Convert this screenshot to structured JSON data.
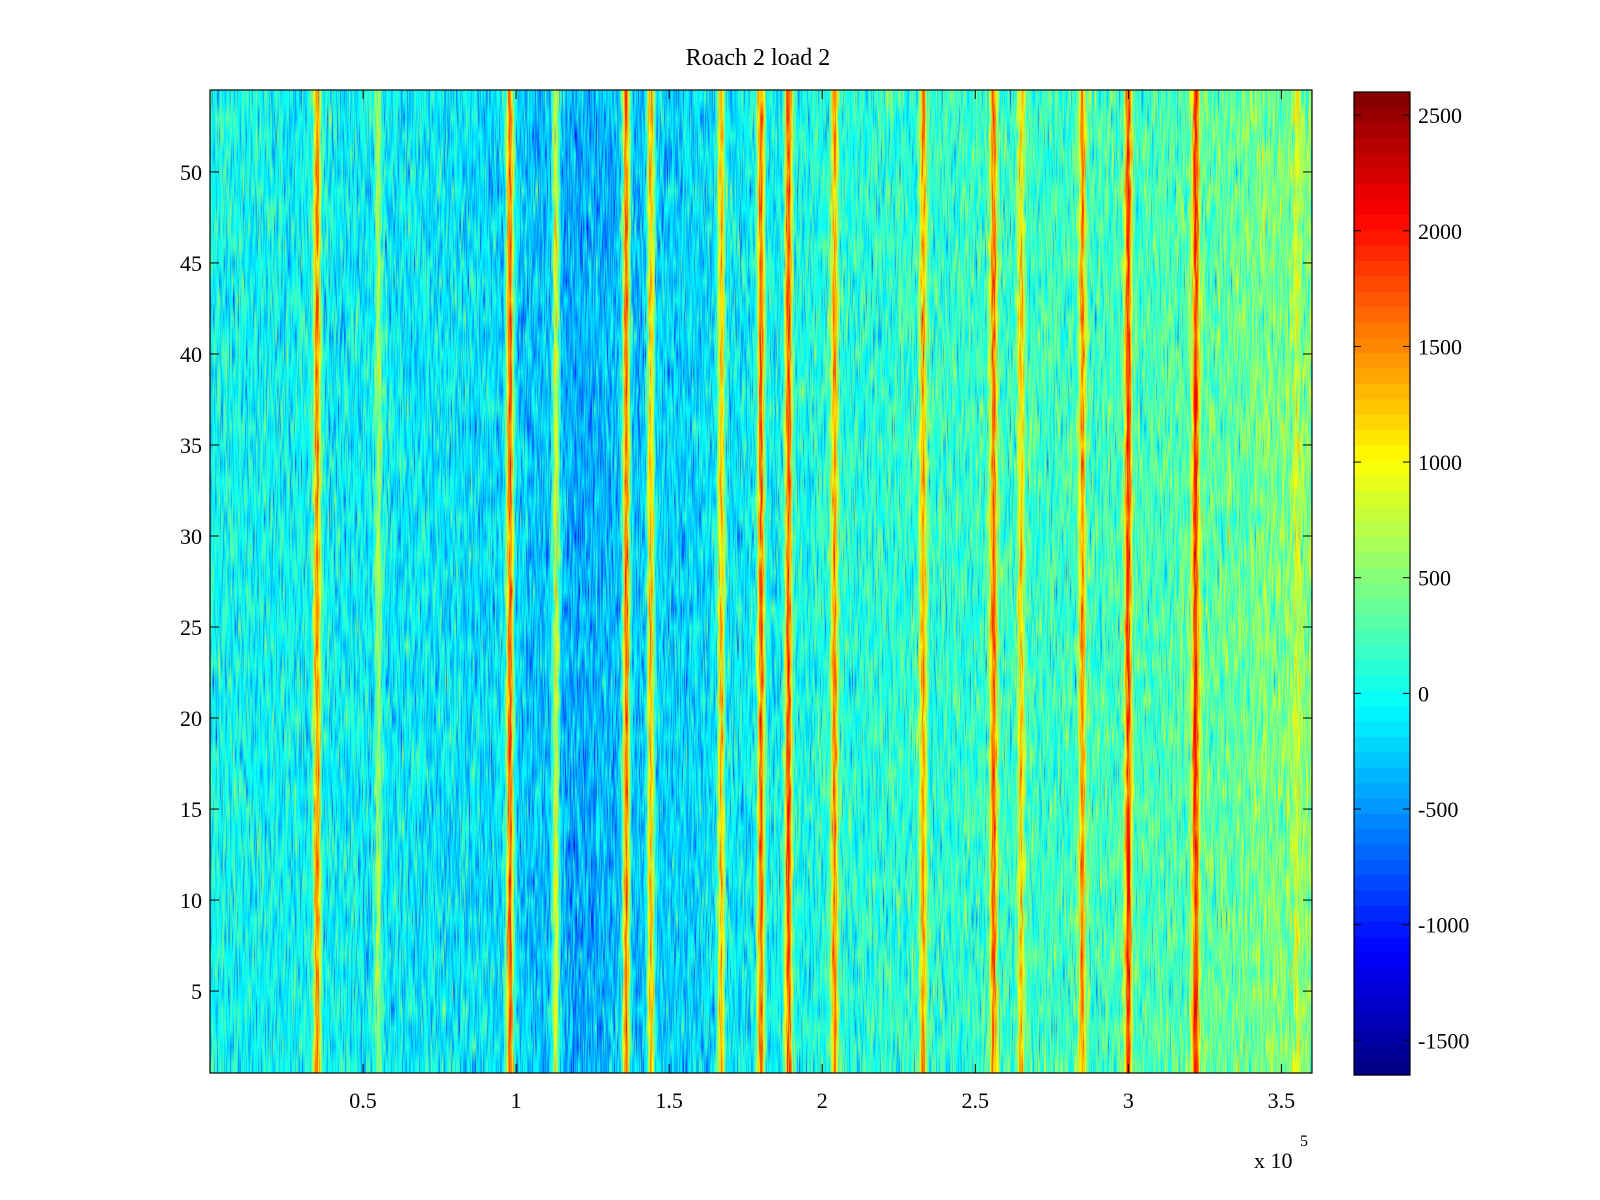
{
  "chart_data": {
    "type": "heatmap",
    "title": "Roach 2 load 2",
    "xlabel": "",
    "ylabel": "",
    "x_exponent_label": {
      "base": "x 10",
      "exponent": "5"
    },
    "xlim": [
      0,
      360000
    ],
    "ylim": [
      0.5,
      54.5
    ],
    "x_ticks": [
      0.5,
      1,
      1.5,
      2,
      2.5,
      3,
      3.5
    ],
    "x_tick_labels": [
      "0.5",
      "1",
      "1.5",
      "2",
      "2.5",
      "3",
      "3.5"
    ],
    "y_ticks": [
      5,
      10,
      15,
      20,
      25,
      30,
      35,
      40,
      45,
      50
    ],
    "y_tick_labels": [
      "5",
      "10",
      "15",
      "20",
      "25",
      "30",
      "35",
      "40",
      "45",
      "50"
    ],
    "rows": 54,
    "colormap": "jet",
    "color_limits": [
      -1650,
      2600
    ],
    "colorbar_ticks": [
      2500,
      2000,
      1500,
      1000,
      500,
      0,
      -500,
      -1000,
      -1500
    ],
    "colorbar_tick_labels": [
      "2500",
      "2000",
      "1500",
      "1000",
      "500",
      "0",
      "-500",
      "-1000",
      "-1500"
    ],
    "background_level": 0,
    "background_profile": [
      {
        "x": 0,
        "value": 0
      },
      {
        "x": 90000,
        "value": -150
      },
      {
        "x": 120000,
        "value": -400
      },
      {
        "x": 150000,
        "value": -250
      },
      {
        "x": 200000,
        "value": 50
      },
      {
        "x": 250000,
        "value": 150
      },
      {
        "x": 300000,
        "value": 200
      },
      {
        "x": 340000,
        "value": 400
      },
      {
        "x": 360000,
        "value": 500
      }
    ],
    "stripes": [
      {
        "x": 35000,
        "value": 1500
      },
      {
        "x": 55000,
        "value": 600
      },
      {
        "x": 98000,
        "value": 1700
      },
      {
        "x": 113000,
        "value": 900
      },
      {
        "x": 136000,
        "value": 1600
      },
      {
        "x": 144000,
        "value": 1300
      },
      {
        "x": 167000,
        "value": 1300
      },
      {
        "x": 180000,
        "value": 1700
      },
      {
        "x": 189000,
        "value": 1800
      },
      {
        "x": 204000,
        "value": 1500
      },
      {
        "x": 233000,
        "value": 1400
      },
      {
        "x": 256000,
        "value": 1700
      },
      {
        "x": 265000,
        "value": 1200
      },
      {
        "x": 285000,
        "value": 1500
      },
      {
        "x": 300000,
        "value": 1900
      },
      {
        "x": 322000,
        "value": 1900
      },
      {
        "x": 355000,
        "value": 800
      }
    ]
  }
}
